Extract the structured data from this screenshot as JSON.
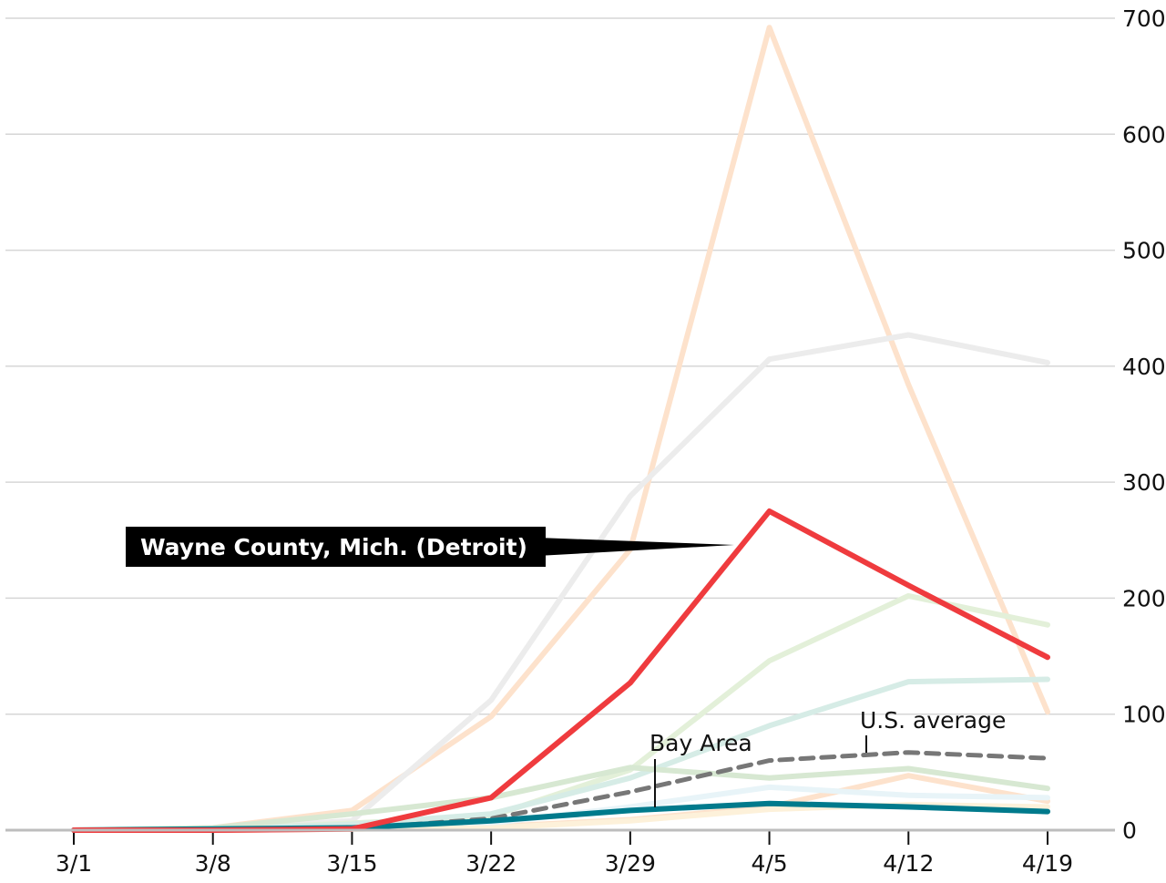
{
  "chart_data": {
    "type": "line",
    "x": [
      "3/1",
      "3/8",
      "3/15",
      "3/22",
      "3/29",
      "4/5",
      "4/12",
      "4/19"
    ],
    "ylim": [
      0,
      700
    ],
    "yticks": [
      0,
      100,
      200,
      300,
      400,
      500,
      600,
      700
    ],
    "y_axis_side": "right",
    "grid": true,
    "series": [
      {
        "name": "",
        "color": "#fde2cc",
        "width": 6,
        "values": [
          0,
          2,
          17,
          98,
          242,
          692,
          384,
          102
        ]
      },
      {
        "name": "",
        "color": "#ececec",
        "width": 6,
        "values": [
          0,
          1,
          8,
          112,
          288,
          406,
          427,
          403
        ]
      },
      {
        "name": "",
        "color": "#e3f0d9",
        "width": 6,
        "values": [
          0,
          1,
          6,
          12,
          52,
          146,
          202,
          177
        ]
      },
      {
        "name": "",
        "color": "#d6ece6",
        "width": 6,
        "values": [
          0,
          1,
          5,
          14,
          45,
          90,
          128,
          130
        ]
      },
      {
        "name": "",
        "color": "#d7e8d2",
        "width": 6,
        "values": [
          0,
          2,
          14,
          28,
          54,
          45,
          53,
          36
        ]
      },
      {
        "name": "",
        "color": "#fde2cc",
        "width": 6,
        "values": [
          0,
          0,
          1,
          3,
          9,
          20,
          47,
          25
        ]
      },
      {
        "name": "",
        "color": "#e8f4f8",
        "width": 6,
        "values": [
          0,
          0,
          2,
          6,
          20,
          37,
          30,
          28
        ]
      },
      {
        "name": "",
        "color": "#fdf1da",
        "width": 6,
        "values": [
          0,
          0,
          1,
          2,
          8,
          18,
          22,
          20
        ]
      },
      {
        "name": "U.S. average",
        "color": "#777777",
        "width": 5,
        "dash": "14 9",
        "values": [
          0,
          0,
          1,
          10,
          33,
          60,
          67,
          62
        ]
      },
      {
        "name": "Bay Area",
        "color": "#007a8c",
        "width": 6,
        "values": [
          0,
          1,
          2,
          8,
          17,
          23,
          20,
          16
        ]
      },
      {
        "name": "Wayne County, Mich. (Detroit)",
        "color": "#ef3b3e",
        "width": 6,
        "values": [
          0,
          0,
          1,
          28,
          127,
          275,
          211,
          149
        ]
      }
    ],
    "annotations": {
      "wayne_label": "Wayne County, Mich. (Detroit)",
      "bay_label": "Bay Area",
      "us_label": "U.S. average"
    }
  }
}
